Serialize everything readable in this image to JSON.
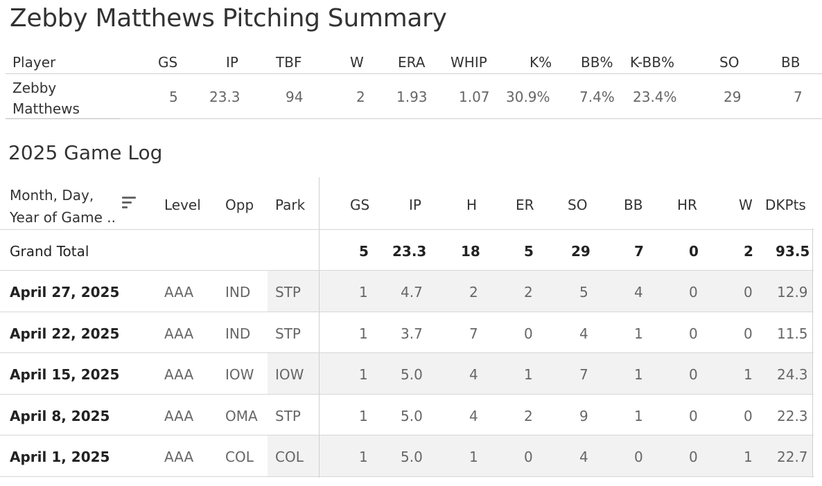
{
  "title": "Zebby Matthews Pitching Summary",
  "summary": {
    "headers": [
      "Player",
      "GS",
      "IP",
      "TBF",
      "W",
      "ERA",
      "WHIP",
      "K%",
      "BB%",
      "K-BB%",
      "SO",
      "BB"
    ],
    "player_line1": "Zebby",
    "player_line2": "Matthews",
    "values": [
      "5",
      "23.3",
      "94",
      "2",
      "1.93",
      "1.07",
      "30.9%",
      "7.4%",
      "23.4%",
      "29",
      "7"
    ]
  },
  "gamelog": {
    "title": "2025 Game Log",
    "date_header_line1": "Month, Day,",
    "date_header_line2": "Year of Game ..",
    "headers": [
      "Level",
      "Opp",
      "Park",
      "GS",
      "IP",
      "H",
      "ER",
      "SO",
      "BB",
      "HR",
      "W",
      "DKPts"
    ],
    "grand_total": {
      "label": "Grand Total",
      "values": [
        "5",
        "23.3",
        "18",
        "5",
        "29",
        "7",
        "0",
        "2",
        "93.5"
      ]
    },
    "rows": [
      {
        "date": "April 27, 2025",
        "level": "AAA",
        "opp": "IND",
        "park": "STP",
        "values": [
          "1",
          "4.7",
          "2",
          "2",
          "5",
          "4",
          "0",
          "0",
          "12.9"
        ]
      },
      {
        "date": "April 22, 2025",
        "level": "AAA",
        "opp": "IND",
        "park": "STP",
        "values": [
          "1",
          "3.7",
          "7",
          "0",
          "4",
          "1",
          "0",
          "0",
          "11.5"
        ]
      },
      {
        "date": "April 15, 2025",
        "level": "AAA",
        "opp": "IOW",
        "park": "IOW",
        "values": [
          "1",
          "5.0",
          "4",
          "1",
          "7",
          "1",
          "0",
          "1",
          "24.3"
        ]
      },
      {
        "date": "April 8, 2025",
        "level": "AAA",
        "opp": "OMA",
        "park": "STP",
        "values": [
          "1",
          "5.0",
          "4",
          "2",
          "9",
          "1",
          "0",
          "0",
          "22.3"
        ]
      },
      {
        "date": "April 1, 2025",
        "level": "AAA",
        "opp": "COL",
        "park": "COL",
        "values": [
          "1",
          "5.0",
          "1",
          "0",
          "4",
          "0",
          "0",
          "1",
          "22.7"
        ]
      }
    ]
  }
}
